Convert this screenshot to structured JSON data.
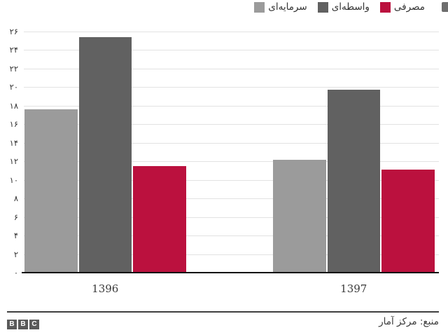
{
  "legend": {
    "items": [
      {
        "id": "consumer",
        "label": "مصرفی",
        "color": "#bb113e"
      },
      {
        "id": "intermediate",
        "label": "واسطه‌ای",
        "color": "#616161"
      },
      {
        "id": "capital",
        "label": "سرمایه‌ای",
        "color": "#9b9b9b"
      }
    ]
  },
  "chart_data": {
    "type": "bar",
    "direction": "rtl",
    "title": "",
    "categories": [
      "1396",
      "1397"
    ],
    "series": [
      {
        "name": "مصرفی",
        "color": "#bb113e",
        "values": [
          11.5,
          11.1
        ]
      },
      {
        "name": "واسطه‌ای",
        "color": "#616161",
        "values": [
          25.4,
          19.7
        ]
      },
      {
        "name": "سرمایه‌ای",
        "color": "#9b9b9b",
        "values": [
          17.6,
          12.2
        ]
      }
    ],
    "xlabel": "",
    "ylabel": "",
    "ylim": [
      0,
      26
    ],
    "ytick_step": 2,
    "ytick_labels_fa": [
      "۰",
      "۲",
      "۴",
      "۶",
      "۸",
      "۱۰",
      "۱۲",
      "۱۴",
      "۱۶",
      "۱۸",
      "۲۰",
      "۲۲",
      "۲۴",
      "۲۶"
    ],
    "grid": true,
    "legend_position": "top-right"
  },
  "footer": {
    "source": "منبع: مرکز آمار",
    "logo_blocks": [
      "B",
      "B",
      "C"
    ]
  },
  "colors": {
    "consumer_red": "#bb113e",
    "intermediate_gray": "#616161",
    "capital_gray": "#9b9b9b",
    "gridline": "#e2e2e2",
    "axis_line": "#0b0b0b",
    "text": "#333333"
  }
}
